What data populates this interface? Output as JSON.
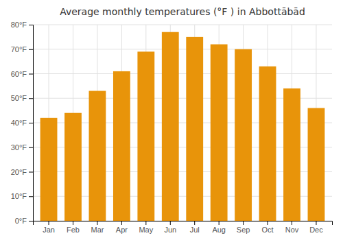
{
  "chart_data": {
    "type": "bar",
    "title": "Average monthly temperatures (°F ) in Abbottābād",
    "categories": [
      "Jan",
      "Feb",
      "Mar",
      "Apr",
      "May",
      "Jun",
      "Jul",
      "Aug",
      "Sep",
      "Oct",
      "Nov",
      "Dec"
    ],
    "values": [
      42,
      44,
      53,
      61,
      69,
      77,
      75,
      72,
      70,
      63,
      54,
      46
    ],
    "color": "#E8940A",
    "ylim": [
      0,
      80
    ],
    "yticks": [
      {
        "value": 0,
        "label": "0°F"
      },
      {
        "value": 10,
        "label": "10°F"
      },
      {
        "value": 20,
        "label": "20°F"
      },
      {
        "value": 30,
        "label": "30°F"
      },
      {
        "value": 40,
        "label": "40°F"
      },
      {
        "value": 50,
        "label": "50°F"
      },
      {
        "value": 60,
        "label": "60°F"
      },
      {
        "value": 70,
        "label": "70°F"
      },
      {
        "value": 80,
        "label": "80°F"
      }
    ],
    "grid": true
  }
}
